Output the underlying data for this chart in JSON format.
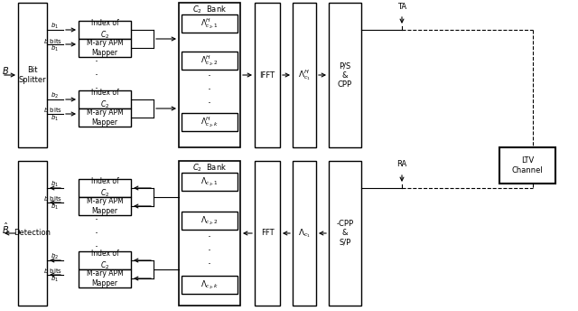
{
  "bg_color": "#ffffff",
  "line_color": "#000000",
  "fig_width": 6.4,
  "fig_height": 3.44,
  "top": {
    "B_label": "$B$",
    "bs_label": "Bit\nSplitter",
    "idx1_label": "Index of\n$C_2$",
    "map1_label": "M-ary APM\nMapper",
    "idx2_label": "Index of\n$C_2$",
    "map2_label": "M-ary APM\nMapper",
    "bank_title": "$C_2$  Bank",
    "bank1": "$\\Lambda^H_{c_2,1}$",
    "bank2": "$\\Lambda^H_{c_2,2}$",
    "bank3": "$\\Lambda^H_{c_2,k}$",
    "ifft_label": "IFFT",
    "lambda_label": "$\\Lambda^H_{c_1}$",
    "ps_label": "P/S\n&\nCPP",
    "ta_label": "TA"
  },
  "bot": {
    "B_label": "$\\hat{B}$",
    "detect_label": "Detection",
    "idx1_label": "Index of\n$C_2$",
    "map1_label": "M-ary APM\nMapper",
    "idx2_label": "Index of\n$C_2$",
    "map2_label": "M-ary APM\nMapper",
    "bank_title": "$C_2$  Bank",
    "bank1": "$\\Lambda_{c_2,1}$",
    "bank2": "$\\Lambda_{c_2,2}$",
    "bank3": "$\\Lambda_{c_2,k}$",
    "fft_label": "FFT",
    "lambda_label": "$\\Lambda_{c_1}$",
    "cpp_label": "-CPP\n&\nS/P",
    "ra_label": "RA"
  },
  "ltv_label": "LTV\nChannel",
  "b1_label": "$b_1$",
  "bbits_label": "$b$ bits",
  "b1b_label": "$b_1$",
  "b2_label": "$b_2$"
}
